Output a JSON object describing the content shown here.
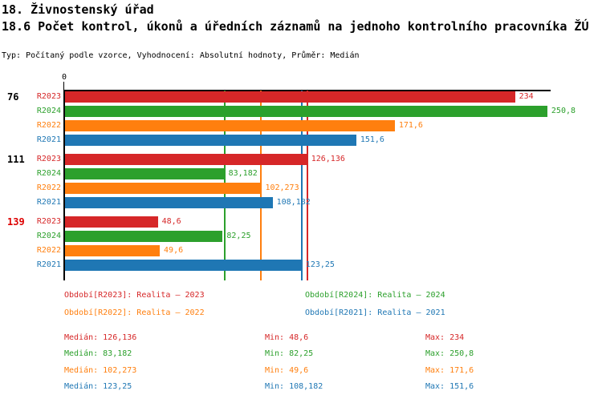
{
  "header": {
    "title": "18. Živnostenský úřad",
    "subtitle": "18.6 Počet kontrol, úkonů a úředních záznamů na jednoho kontrolního pracovníka ŽÚ",
    "meta": "Typ: Počítaný podle vzorce, Vyhodnocení: Absolutní hodnoty, Průměr: Medián"
  },
  "chart_data": {
    "type": "bar",
    "orientation": "horizontal",
    "title": "18.6 Počet kontrol, úkonů a úředních záznamů na jednoho kontrolního pracovníka ŽÚ",
    "axis_origin_label": "0",
    "xlim": [
      0,
      250.8
    ],
    "grid": false,
    "categories": [
      "76",
      "111",
      "139"
    ],
    "group_label_colors": [
      "#000000",
      "#000000",
      "#dd0000"
    ],
    "series": [
      {
        "name": "R2023",
        "color": "#d62728",
        "values": [
          234,
          126.136,
          48.6
        ],
        "value_labels": [
          "234",
          "126,136",
          "48,6"
        ],
        "median": 126.136
      },
      {
        "name": "R2024",
        "color": "#2ca02c",
        "values": [
          250.8,
          83.182,
          82.25
        ],
        "value_labels": [
          "250,8",
          "83,182",
          "82,25"
        ],
        "median": 83.182
      },
      {
        "name": "R2022",
        "color": "#ff7f0e",
        "values": [
          171.6,
          102.273,
          49.6
        ],
        "value_labels": [
          "171,6",
          "102,273",
          "49,6"
        ],
        "median": 102.273
      },
      {
        "name": "R2021",
        "color": "#1f77b4",
        "values": [
          151.6,
          108.182,
          123.25
        ],
        "value_labels": [
          "151,6",
          "108,182",
          "123,25"
        ],
        "median": 123.25
      }
    ]
  },
  "legend": {
    "items": [
      {
        "series": "R2023",
        "text": "Období[R2023]: Realita – 2023",
        "color": "#d62728"
      },
      {
        "series": "R2024",
        "text": "Období[R2024]: Realita – 2024",
        "color": "#2ca02c"
      },
      {
        "series": "R2022",
        "text": "Období[R2022]: Realita – 2022",
        "color": "#ff7f0e"
      },
      {
        "series": "R2021",
        "text": "Období[R2021]: Realita – 2021",
        "color": "#1f77b4"
      }
    ]
  },
  "stats": {
    "rows": [
      {
        "series": "R2023",
        "color": "#d62728",
        "median": "Medián: 126,136",
        "min": "Min: 48,6",
        "max": "Max: 234"
      },
      {
        "series": "R2024",
        "color": "#2ca02c",
        "median": "Medián: 83,182",
        "min": "Min: 82,25",
        "max": "Max: 250,8"
      },
      {
        "series": "R2022",
        "color": "#ff7f0e",
        "median": "Medián: 102,273",
        "min": "Min: 49,6",
        "max": "Max: 171,6"
      },
      {
        "series": "R2021",
        "color": "#1f77b4",
        "median": "Medián: 123,25",
        "min": "Min: 108,182",
        "max": "Max: 151,6"
      }
    ]
  }
}
